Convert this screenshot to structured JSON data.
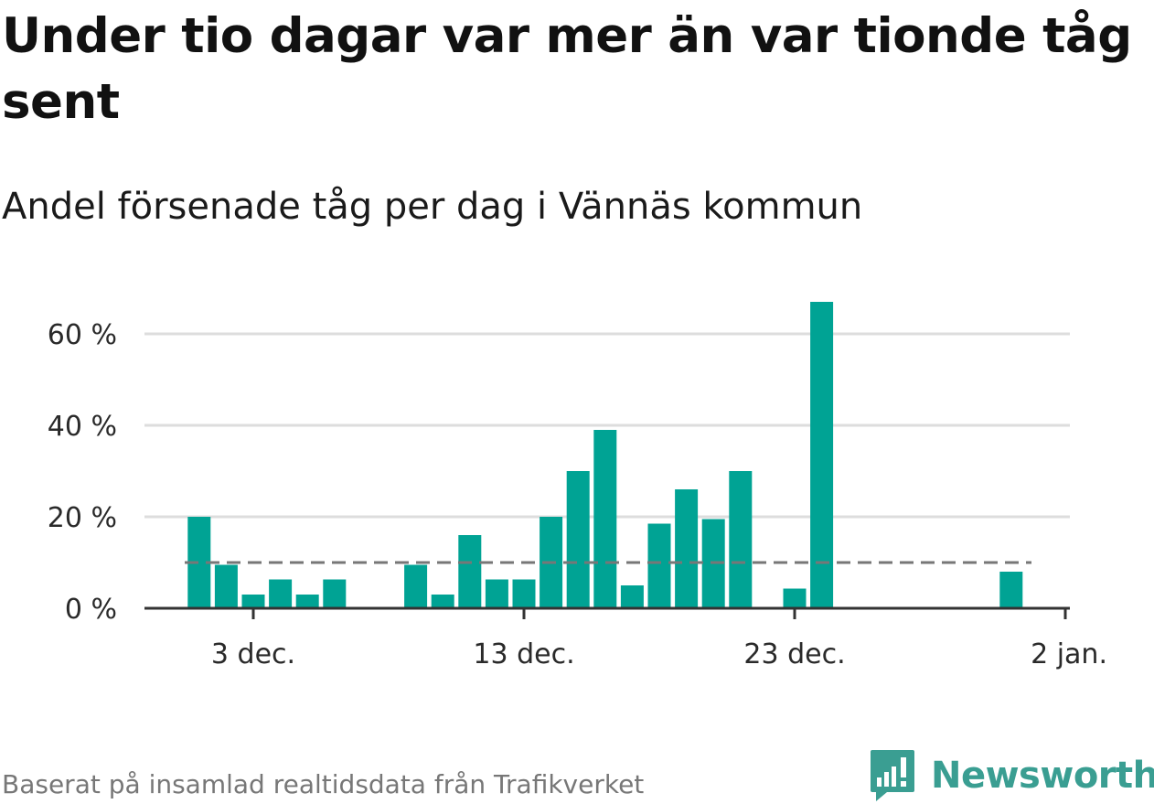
{
  "header": {
    "title": "Under tio dagar var mer än var tionde tåg sent",
    "subtitle": "Andel försenade tåg per dag i Vännäs kommun"
  },
  "footer": {
    "source": "Baserat på insamlad realtidsdata från Trafikverket",
    "brand": "Newsworthy"
  },
  "colors": {
    "bar": "#00a394",
    "reference_line": "#777777",
    "grid": "#dddddd",
    "axis": "#333333",
    "brand": "#3a9e92"
  },
  "chart_data": {
    "type": "bar",
    "title": "Under tio dagar var mer än var tionde tåg sent",
    "subtitle": "Andel försenade tåg per dag i Vännäs kommun",
    "x_unit": "day",
    "x_range": [
      "2023-11-29",
      "2024-01-02"
    ],
    "x_ticks": [
      {
        "date": "2023-12-03",
        "label": "3 dec."
      },
      {
        "date": "2023-12-13",
        "label": "13 dec."
      },
      {
        "date": "2023-12-23",
        "label": "23 dec."
      },
      {
        "date": "2024-01-02",
        "label": "2 jan."
      }
    ],
    "y_ticks": [
      {
        "value": 0,
        "label": "0 %"
      },
      {
        "value": 20,
        "label": "20 %"
      },
      {
        "value": 40,
        "label": "40 %"
      },
      {
        "value": 60,
        "label": "60 %"
      }
    ],
    "ylim": [
      0,
      70
    ],
    "grid": true,
    "reference_line": 10,
    "points": [
      {
        "date": "2023-12-01",
        "value": 20
      },
      {
        "date": "2023-12-02",
        "value": 9.5
      },
      {
        "date": "2023-12-03",
        "value": 3
      },
      {
        "date": "2023-12-04",
        "value": 6.3
      },
      {
        "date": "2023-12-05",
        "value": 3
      },
      {
        "date": "2023-12-06",
        "value": 6.3
      },
      {
        "date": "2023-12-09",
        "value": 9.5
      },
      {
        "date": "2023-12-10",
        "value": 3
      },
      {
        "date": "2023-12-11",
        "value": 16
      },
      {
        "date": "2023-12-12",
        "value": 6.3
      },
      {
        "date": "2023-12-13",
        "value": 6.3
      },
      {
        "date": "2023-12-14",
        "value": 20
      },
      {
        "date": "2023-12-15",
        "value": 30
      },
      {
        "date": "2023-12-16",
        "value": 39
      },
      {
        "date": "2023-12-17",
        "value": 5
      },
      {
        "date": "2023-12-18",
        "value": 18.5
      },
      {
        "date": "2023-12-19",
        "value": 26
      },
      {
        "date": "2023-12-20",
        "value": 19.5
      },
      {
        "date": "2023-12-21",
        "value": 30
      },
      {
        "date": "2023-12-23",
        "value": 4.3
      },
      {
        "date": "2023-12-24",
        "value": 67
      },
      {
        "date": "2023-12-31",
        "value": 8
      }
    ]
  }
}
